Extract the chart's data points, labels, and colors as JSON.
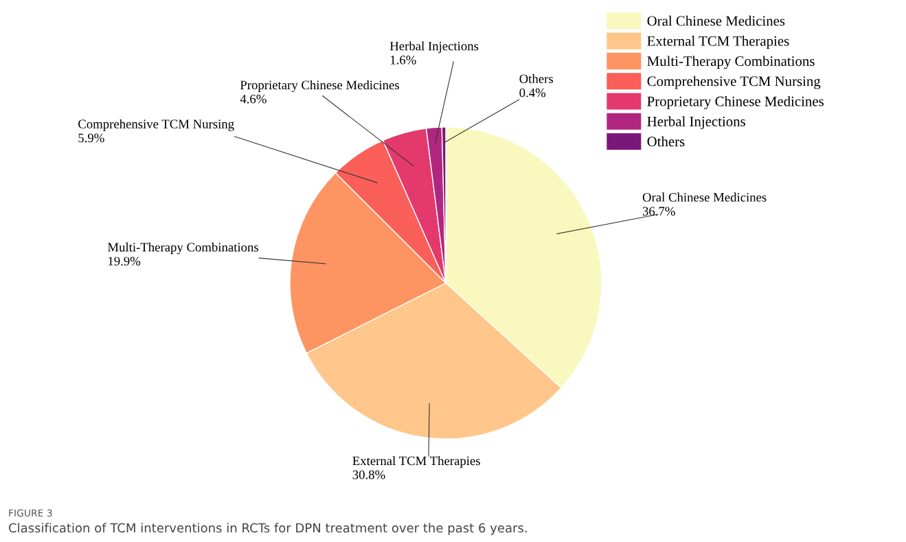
{
  "chart_data": {
    "type": "pie",
    "categories": [
      "Oral Chinese Medicines",
      "External TCM Therapies",
      "Multi-Therapy Combinations",
      "Comprehensive TCM Nursing",
      "Proprietary Chinese Medicines",
      "Herbal Injections",
      "Others"
    ],
    "values": [
      36.7,
      30.8,
      19.9,
      5.9,
      4.6,
      1.6,
      0.4
    ],
    "value_labels": [
      "36.7%",
      "30.8%",
      "19.9%",
      "5.9%",
      "4.6%",
      "1.6%",
      "0.4%"
    ],
    "colors": [
      "#f9f8be",
      "#fec68a",
      "#fd9461",
      "#fa5f59",
      "#e4396d",
      "#b1277f",
      "#7c1679"
    ],
    "legend": "top right",
    "annotations": [
      "FIGURE 3",
      "Classification of TCM interventions in RCTs for DPN treatment over the past 6 years."
    ]
  }
}
